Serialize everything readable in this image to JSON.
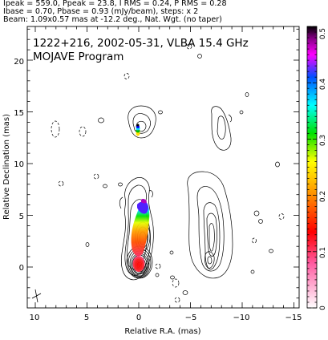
{
  "header": {
    "line1": "Ipeak = 559.0, Ppeak = 23.8, I RMS = 0.24, P RMS = 0.28",
    "line2": "Ibase = 0.70, Pbase = 0.93 (mJy/beam), steps: x 2",
    "line3": "Beam: 1.09x0.57 mas at -12.2 deg., Nat. Wgt. (no taper)"
  },
  "plot": {
    "title": "1222+216, 2002-05-31, VLBA 15.4 GHz",
    "subtitle": "MOJAVE Program",
    "xlabel": "Relative R.A. (mas)",
    "ylabel": "Relative Declination (mas)",
    "x_ticks": [
      "10",
      "5",
      "0",
      "−5",
      "−10",
      "−15"
    ],
    "y_ticks": [
      "0",
      "5",
      "10",
      "15",
      "20"
    ],
    "colorbar_ticks": [
      "0",
      "0.1",
      "0.2",
      "0.3",
      "0.4",
      "0.5"
    ]
  },
  "colors": {
    "axis": "#000000",
    "contour": "#000000",
    "colormap": [
      "#ffffff",
      "#ff9ec8",
      "#ff0000",
      "#ff8000",
      "#ffff00",
      "#00ff00",
      "#00ffff",
      "#0000ff",
      "#ff00ff",
      "#000000"
    ]
  }
}
